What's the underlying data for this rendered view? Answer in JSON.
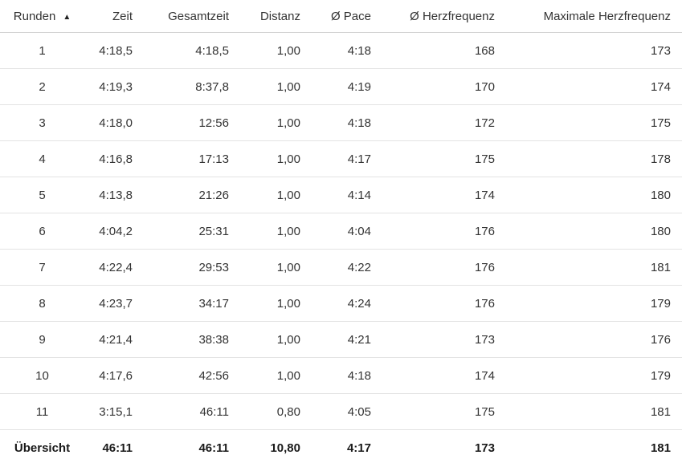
{
  "table": {
    "columns": [
      {
        "label": "Runden",
        "sorted": "ascending"
      },
      {
        "label": "Zeit"
      },
      {
        "label": "Gesamtzeit"
      },
      {
        "label": "Distanz"
      },
      {
        "label": "Ø Pace"
      },
      {
        "label": "Ø Herzfrequenz"
      },
      {
        "label": "Maximale Herzfrequenz"
      }
    ],
    "sort_icon": "▲",
    "rows": [
      [
        "1",
        "4:18,5",
        "4:18,5",
        "1,00",
        "4:18",
        "168",
        "173"
      ],
      [
        "2",
        "4:19,3",
        "8:37,8",
        "1,00",
        "4:19",
        "170",
        "174"
      ],
      [
        "3",
        "4:18,0",
        "12:56",
        "1,00",
        "4:18",
        "172",
        "175"
      ],
      [
        "4",
        "4:16,8",
        "17:13",
        "1,00",
        "4:17",
        "175",
        "178"
      ],
      [
        "5",
        "4:13,8",
        "21:26",
        "1,00",
        "4:14",
        "174",
        "180"
      ],
      [
        "6",
        "4:04,2",
        "25:31",
        "1,00",
        "4:04",
        "176",
        "180"
      ],
      [
        "7",
        "4:22,4",
        "29:53",
        "1,00",
        "4:22",
        "176",
        "181"
      ],
      [
        "8",
        "4:23,7",
        "34:17",
        "1,00",
        "4:24",
        "176",
        "179"
      ],
      [
        "9",
        "4:21,4",
        "38:38",
        "1,00",
        "4:21",
        "173",
        "176"
      ],
      [
        "10",
        "4:17,6",
        "42:56",
        "1,00",
        "4:18",
        "174",
        "179"
      ],
      [
        "11",
        "3:15,1",
        "46:11",
        "0,80",
        "4:05",
        "175",
        "181"
      ]
    ],
    "summary": [
      "Übersicht",
      "46:11",
      "46:11",
      "10,80",
      "4:17",
      "173",
      "181"
    ]
  },
  "colors": {
    "text": "#333333",
    "summary_text": "#1a1a1a",
    "row_divider": "#e3e3e3",
    "header_divider": "#d4d4d4",
    "background": "#ffffff"
  }
}
